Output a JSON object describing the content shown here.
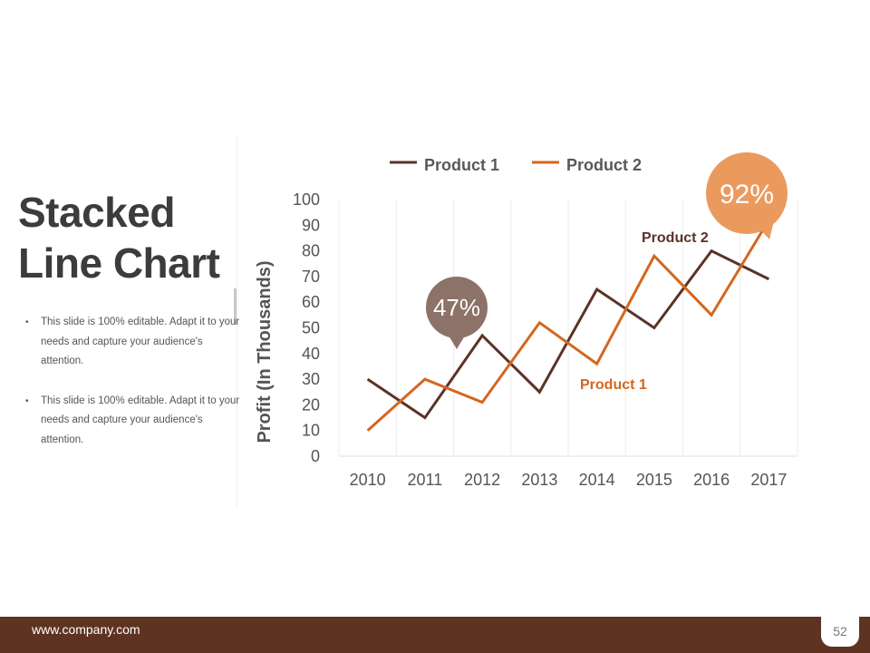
{
  "slide": {
    "title_line1": "Stacked",
    "title_line2": "Line Chart",
    "bullets": [
      "This slide is 100% editable. Adapt it to your needs and capture your audience's attention.",
      "This slide is 100% editable. Adapt it to your needs and capture your audience's attention."
    ]
  },
  "footer": {
    "url": "www.company.com",
    "page_number": "52"
  },
  "colors": {
    "product1": "#5c3227",
    "product2": "#d3671f",
    "callout_small": "#8c7268",
    "callout_large": "#eb9a5e",
    "footer": "#5e3322"
  },
  "chart_data": {
    "type": "line",
    "categories": [
      "2010",
      "2011",
      "2012",
      "2013",
      "2014",
      "2015",
      "2016",
      "2017"
    ],
    "x": [
      0,
      0.5,
      1,
      1.5,
      2,
      2.5,
      3,
      3.5,
      4,
      4.5,
      5,
      5.5,
      6,
      6.5,
      7
    ],
    "series": [
      {
        "name": "Product 1",
        "values": [
          30,
          15,
          47,
          25,
          65,
          50,
          80,
          69
        ],
        "x": [
          0,
          1,
          2,
          3,
          4,
          5,
          6,
          7
        ]
      },
      {
        "name": "Product 2",
        "values": [
          10,
          30,
          21,
          52,
          36,
          78,
          55,
          92
        ],
        "x": [
          0,
          1,
          2,
          3,
          4,
          5,
          6,
          7
        ]
      }
    ],
    "ylabel": "Profit (In Thousands)",
    "xlabel": "",
    "ylim": [
      0,
      100
    ],
    "yticks": [
      "0",
      "10",
      "20",
      "30",
      "40",
      "50",
      "60",
      "70",
      "80",
      "90",
      "100"
    ],
    "legend_position": "top",
    "grid": "vertical",
    "annotations": [
      {
        "text": "Product 2",
        "series": "Product 2"
      },
      {
        "text": "Product 1",
        "series": "Product 1"
      }
    ],
    "callouts": [
      {
        "text": "47%",
        "series": "Product 1",
        "value": 47
      },
      {
        "text": "92%",
        "series": "Product 2",
        "value": 92
      }
    ]
  }
}
